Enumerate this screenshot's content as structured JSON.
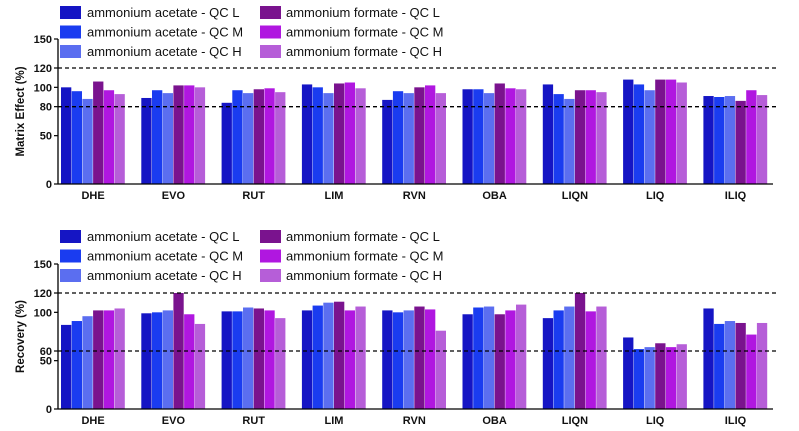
{
  "colors": {
    "aa_l": "#1515c4",
    "aa_m": "#1a3cf0",
    "aa_h": "#5b6ef0",
    "af_l": "#7a138e",
    "af_m": "#b017e0",
    "af_h": "#b65ed8"
  },
  "chart_data": [
    {
      "type": "bar",
      "ylabel": "Matrix Effect (%)",
      "ylim": [
        0,
        150
      ],
      "yticks": [
        0,
        50,
        80,
        100,
        120,
        150
      ],
      "reference_lines": [
        80,
        120
      ],
      "categories": [
        "DHE",
        "EVO",
        "RUT",
        "LIM",
        "RVN",
        "OBA",
        "LIQN",
        "LIQ",
        "ILIQ"
      ],
      "series": [
        {
          "name": "ammonium acetate - QC L",
          "color_key": "aa_l",
          "values": [
            100,
            89,
            84,
            103,
            87,
            98,
            103,
            108,
            91
          ]
        },
        {
          "name": "ammonium acetate - QC M",
          "color_key": "aa_m",
          "values": [
            96,
            97,
            97,
            100,
            96,
            98,
            93,
            103,
            90
          ]
        },
        {
          "name": "ammonium acetate - QC H",
          "color_key": "aa_h",
          "values": [
            88,
            94,
            94,
            94,
            94,
            94,
            88,
            97,
            91
          ]
        },
        {
          "name": "ammonium formate - QC L",
          "color_key": "af_l",
          "values": [
            106,
            102,
            98,
            104,
            100,
            104,
            97,
            108,
            86
          ]
        },
        {
          "name": "ammonium formate - QC M",
          "color_key": "af_m",
          "values": [
            97,
            102,
            99,
            105,
            102,
            99,
            97,
            108,
            97
          ]
        },
        {
          "name": "ammonium formate - QC H",
          "color_key": "af_h",
          "values": [
            93,
            100,
            95,
            99,
            94,
            98,
            95,
            105,
            92
          ]
        }
      ]
    },
    {
      "type": "bar",
      "ylabel": "Recovery (%)",
      "ylim": [
        0,
        150
      ],
      "yticks": [
        0,
        50,
        60,
        100,
        120,
        150
      ],
      "reference_lines": [
        60,
        120
      ],
      "categories": [
        "DHE",
        "EVO",
        "RUT",
        "LIM",
        "RVN",
        "OBA",
        "LIQN",
        "LIQ",
        "ILIQ"
      ],
      "series": [
        {
          "name": "ammonium acetate - QC L",
          "color_key": "aa_l",
          "values": [
            87,
            99,
            101,
            102,
            102,
            98,
            94,
            74,
            104
          ]
        },
        {
          "name": "ammonium acetate - QC M",
          "color_key": "aa_m",
          "values": [
            91,
            100,
            101,
            107,
            100,
            105,
            102,
            62,
            88
          ]
        },
        {
          "name": "ammonium acetate - QC H",
          "color_key": "aa_h",
          "values": [
            96,
            102,
            105,
            110,
            102,
            106,
            106,
            64,
            91
          ]
        },
        {
          "name": "ammonium formate - QC L",
          "color_key": "af_l",
          "values": [
            102,
            120,
            104,
            111,
            106,
            98,
            120,
            68,
            89
          ]
        },
        {
          "name": "ammonium formate - QC M",
          "color_key": "af_m",
          "values": [
            102,
            98,
            102,
            102,
            103,
            102,
            101,
            64,
            77
          ]
        },
        {
          "name": "ammonium formate - QC H",
          "color_key": "af_h",
          "values": [
            104,
            88,
            94,
            106,
            81,
            108,
            106,
            67,
            89
          ]
        }
      ]
    }
  ]
}
